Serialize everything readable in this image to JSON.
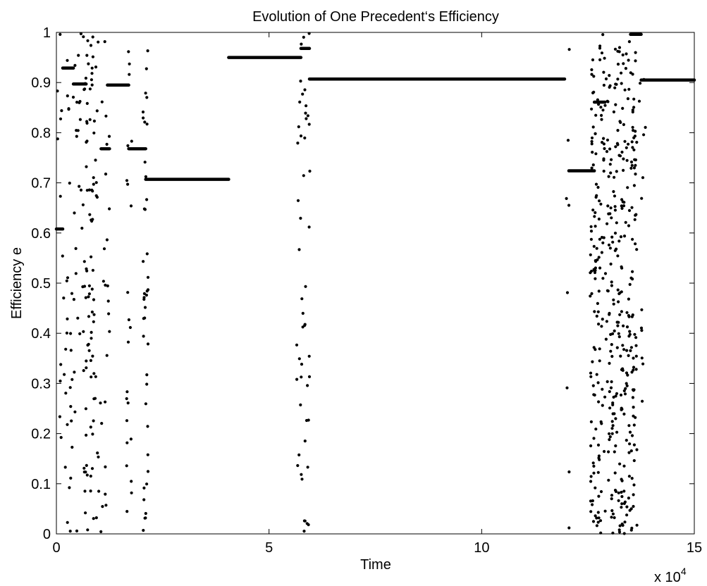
{
  "chart_data": {
    "type": "scatter",
    "title": "Evolution of One Precedent‘s Efficiency",
    "xlabel": "Time",
    "ylabel": "Efficiency e",
    "x_exponent_base": "x 10",
    "x_exponent_power": "4",
    "xlim": [
      0,
      150000
    ],
    "ylim": [
      0,
      1
    ],
    "xticks": [
      {
        "value": 0,
        "label": "0"
      },
      {
        "value": 50000,
        "label": "5"
      },
      {
        "value": 100000,
        "label": "10"
      },
      {
        "value": 150000,
        "label": "15"
      }
    ],
    "yticks": [
      {
        "value": 0,
        "label": "0"
      },
      {
        "value": 0.1,
        "label": "0.1"
      },
      {
        "value": 0.2,
        "label": "0.2"
      },
      {
        "value": 0.3,
        "label": "0.3"
      },
      {
        "value": 0.4,
        "label": "0.4"
      },
      {
        "value": 0.5,
        "label": "0.5"
      },
      {
        "value": 0.6,
        "label": "0.6"
      },
      {
        "value": 0.7,
        "label": "0.7"
      },
      {
        "value": 0.8,
        "label": "0.8"
      },
      {
        "value": 0.9,
        "label": "0.9"
      },
      {
        "value": 1,
        "label": "1"
      }
    ],
    "grid": false,
    "color": "#000000",
    "plateaus": [
      {
        "x_start": 0,
        "x_end": 1500,
        "y": 0.608
      },
      {
        "x_start": 1500,
        "x_end": 4000,
        "y": 0.929
      },
      {
        "x_start": 4000,
        "x_end": 7000,
        "y": 0.897
      },
      {
        "x_start": 10500,
        "x_end": 12500,
        "y": 0.768
      },
      {
        "x_start": 12000,
        "x_end": 17000,
        "y": 0.895
      },
      {
        "x_start": 17000,
        "x_end": 21000,
        "y": 0.768
      },
      {
        "x_start": 21000,
        "x_end": 40500,
        "y": 0.707
      },
      {
        "x_start": 40500,
        "x_end": 57500,
        "y": 0.95
      },
      {
        "x_start": 57500,
        "x_end": 59500,
        "y": 0.968
      },
      {
        "x_start": 59500,
        "x_end": 119500,
        "y": 0.907
      },
      {
        "x_start": 120500,
        "x_end": 126500,
        "y": 0.724
      },
      {
        "x_start": 126500,
        "x_end": 129000,
        "y": 0.861
      },
      {
        "x_start": 135000,
        "x_end": 137500,
        "y": 0.996
      },
      {
        "x_start": 137500,
        "x_end": 150000,
        "y": 0.905
      }
    ],
    "scatter_bands": [
      {
        "x_start": 0,
        "x_end": 1400,
        "count": 10
      },
      {
        "x_start": 1400,
        "x_end": 4200,
        "count": 30
      },
      {
        "x_start": 4200,
        "x_end": 6200,
        "count": 22
      },
      {
        "x_start": 6200,
        "x_end": 9500,
        "count": 90
      },
      {
        "x_start": 9500,
        "x_end": 12500,
        "count": 30
      },
      {
        "x_start": 16500,
        "x_end": 17800,
        "count": 22
      },
      {
        "x_start": 20200,
        "x_end": 21600,
        "count": 40
      },
      {
        "x_start": 56500,
        "x_end": 59800,
        "count": 50
      },
      {
        "x_start": 119800,
        "x_end": 120600,
        "count": 8
      },
      {
        "x_start": 125500,
        "x_end": 136500,
        "count": 420
      },
      {
        "x_start": 136500,
        "x_end": 138500,
        "count": 14
      }
    ]
  }
}
